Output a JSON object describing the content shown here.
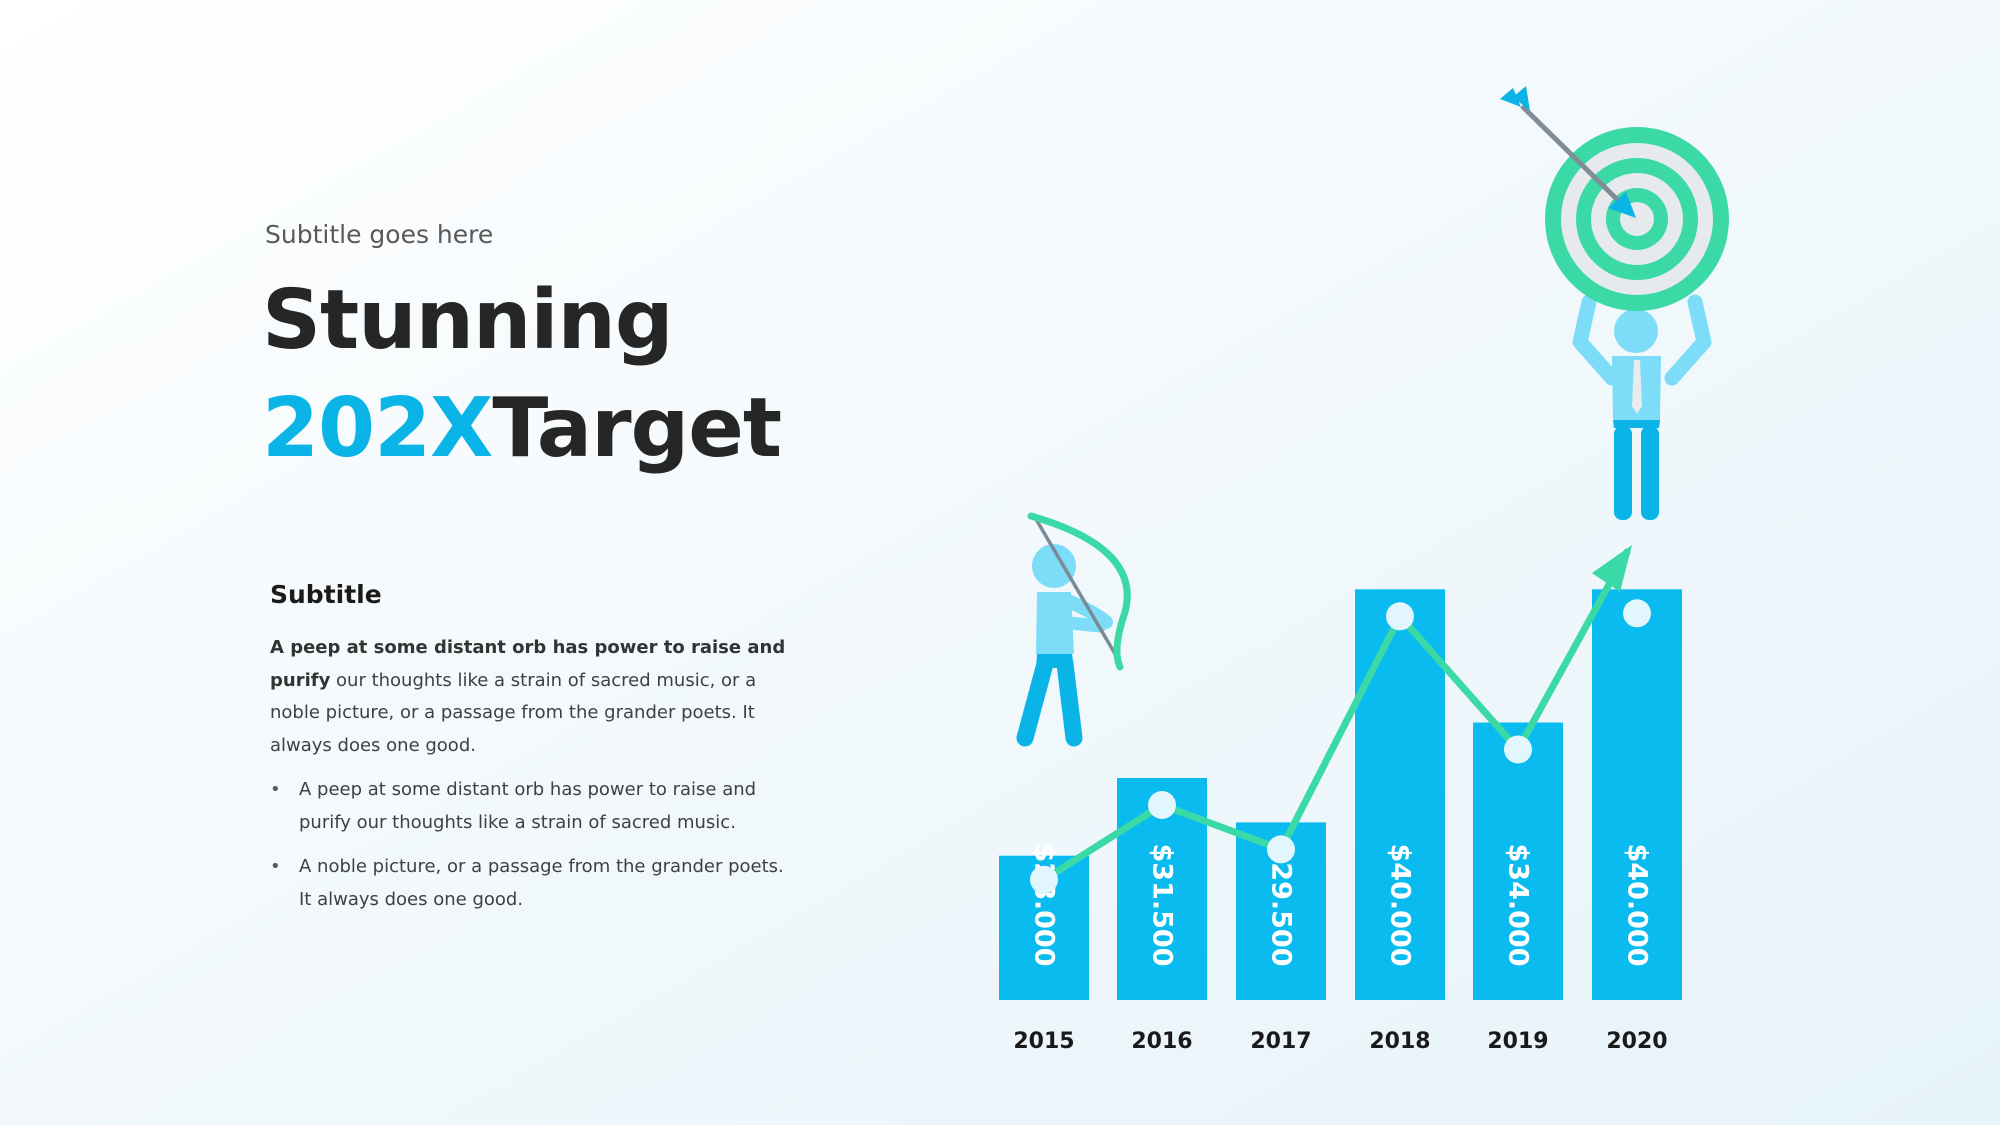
{
  "slide": {
    "kicker": "Subtitle goes here",
    "title_line1": "Stunning",
    "title_accent": "202X",
    "title_rest": "Target",
    "subhead": "Subtitle",
    "para_bold": "A peep at some distant orb has power to raise and purify",
    "para_rest": " our thoughts like a strain of sacred music, or a noble picture, or a passage from the grander poets. It always does one good.",
    "bullets": [
      "A peep at some distant orb has power to raise and purify our thoughts like a strain of sacred music.",
      "A noble picture, or a passage from the grander poets. It always does one good."
    ]
  },
  "colors": {
    "accent": "#0ab4e6",
    "bar": "#0abbef",
    "trend": "#3ad9a6",
    "figure_light": "#7ddcf7",
    "figure_dark": "#0ab4e6",
    "target_ring": "#3ad9a6"
  },
  "icons": [
    "archer-figure",
    "bow-and-arrow-icon",
    "target-icon",
    "arrow-icon",
    "person-holding-target-figure"
  ],
  "chart_data": {
    "type": "bar",
    "categories": [
      "2015",
      "2016",
      "2017",
      "2018",
      "2019",
      "2020"
    ],
    "values": [
      28000,
      31500,
      29500,
      40000,
      34000,
      40000
    ],
    "value_labels": [
      "$28.000",
      "$31.500",
      "$29.500",
      "$40.000",
      "$34.000",
      "$40.000"
    ],
    "trend_line": [
      28000,
      31500,
      29500,
      40000,
      34000,
      40000
    ],
    "trend_arrow": true,
    "title": "",
    "xlabel": "",
    "ylabel": "",
    "grid": false,
    "legend": "none"
  }
}
